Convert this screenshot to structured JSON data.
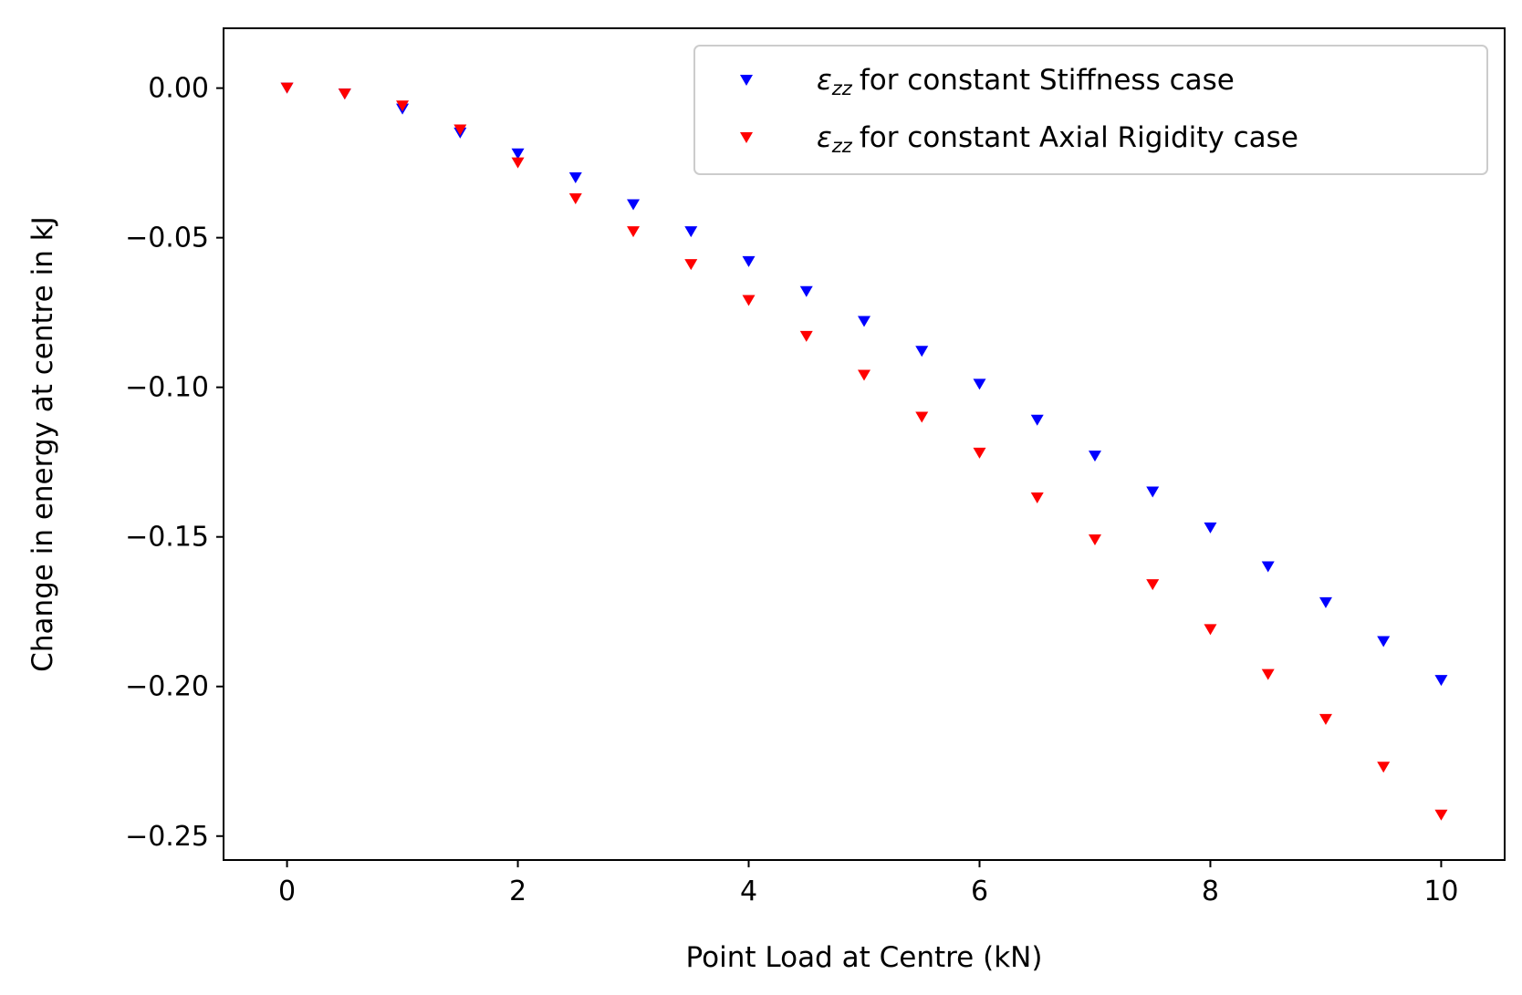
{
  "chart_data": {
    "type": "scatter",
    "title": "",
    "xlabel": "Point Load at Centre (kN)",
    "ylabel": "Change in energy at centre in kJ",
    "xlim": [
      -0.55,
      10.55
    ],
    "ylim": [
      -0.258,
      0.02
    ],
    "xticks": [
      0,
      2,
      4,
      6,
      8,
      10
    ],
    "xtick_labels": [
      "0",
      "2",
      "4",
      "6",
      "8",
      "10"
    ],
    "yticks": [
      0.0,
      -0.05,
      -0.1,
      -0.15,
      -0.2,
      -0.25
    ],
    "ytick_labels": [
      "0.00",
      "−0.05",
      "−0.10",
      "−0.15",
      "−0.20",
      "−0.25"
    ],
    "grid": false,
    "legend_position": "top-right",
    "marker": "triangle-down",
    "x": [
      0,
      0.5,
      1,
      1.5,
      2,
      2.5,
      3,
      3.5,
      4,
      4.5,
      5,
      5.5,
      6,
      6.5,
      7,
      7.5,
      8,
      8.5,
      9,
      9.5,
      10
    ],
    "series": [
      {
        "name_symbol": "ε",
        "name_sub": "zz",
        "name_text": "for constant Stiffness case",
        "color": "#0000ff",
        "values": [
          0.0,
          -0.002,
          -0.007,
          -0.015,
          -0.022,
          -0.03,
          -0.039,
          -0.048,
          -0.058,
          -0.068,
          -0.078,
          -0.088,
          -0.099,
          -0.111,
          -0.123,
          -0.135,
          -0.147,
          -0.16,
          -0.172,
          -0.185,
          -0.198
        ]
      },
      {
        "name_symbol": "ε",
        "name_sub": "zz",
        "name_text": "for constant Axial Rigidity case",
        "color": "#ff0000",
        "values": [
          0.0,
          -0.002,
          -0.006,
          -0.014,
          -0.025,
          -0.037,
          -0.048,
          -0.059,
          -0.071,
          -0.083,
          -0.096,
          -0.11,
          -0.122,
          -0.137,
          -0.151,
          -0.166,
          -0.181,
          -0.196,
          -0.211,
          -0.227,
          -0.243
        ]
      }
    ]
  }
}
